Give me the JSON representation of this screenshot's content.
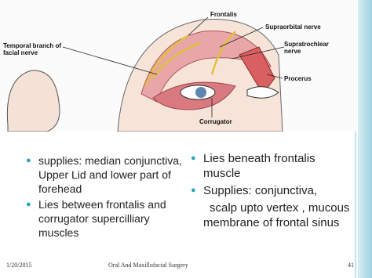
{
  "figure": {
    "labels": [
      "Frontalis",
      "Supraorbital nerve",
      "Supratrochlear nerve",
      "Procerus",
      "Corrugator",
      "Temporal branch of facial nerve"
    ]
  },
  "left_bullets": [
    "supplies: median conjunctiva, Upper Lid and lower part of forehead",
    "Lies between frontalis and corrugator supercilliary muscles"
  ],
  "right_bullets": [
    "Lies beneath frontalis muscle",
    "Supplies: conjunctiva,"
  ],
  "right_continuation": "scalp upto vertex , mucous membrane of frontal sinus",
  "footer": {
    "date": "1/20/2015",
    "title": "Oral And Maxillofacial Surgery",
    "page": "41"
  }
}
